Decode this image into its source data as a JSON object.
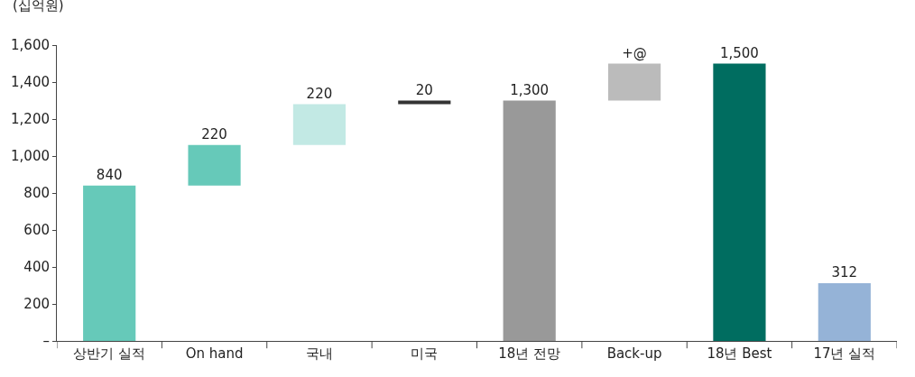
{
  "chart_data": {
    "type": "bar",
    "ylabel": "(십억원)",
    "categories": [
      "상반기 실적",
      "On hand",
      "국내",
      "미국",
      "18년 전망",
      "Back-up",
      "18년 Best",
      "17년 실적"
    ],
    "values": [
      840,
      220,
      220,
      20,
      1300,
      200,
      1500,
      312
    ],
    "base": [
      0,
      840,
      1060,
      1280,
      0,
      1300,
      0,
      0
    ],
    "colors": [
      "#66c9b9",
      "#66c9b9",
      "#c2e9e4",
      "#333333",
      "#999999",
      "#bbbbbb",
      "#006d60",
      "#95b3d7"
    ],
    "value_labels": [
      "840",
      "220",
      "220",
      "20",
      "1,300",
      "+@",
      "1,500",
      "312"
    ],
    "ylim": [
      0,
      1600
    ],
    "yticks": [
      {
        "value": 0,
        "label": "–"
      },
      200,
      400,
      600,
      800,
      {
        "value": 1000,
        "label": "1,000"
      },
      {
        "value": 1200,
        "label": "1,200"
      },
      {
        "value": 1400,
        "label": "1,400"
      },
      {
        "value": 1600,
        "label": "1,600"
      }
    ],
    "legend": false
  }
}
